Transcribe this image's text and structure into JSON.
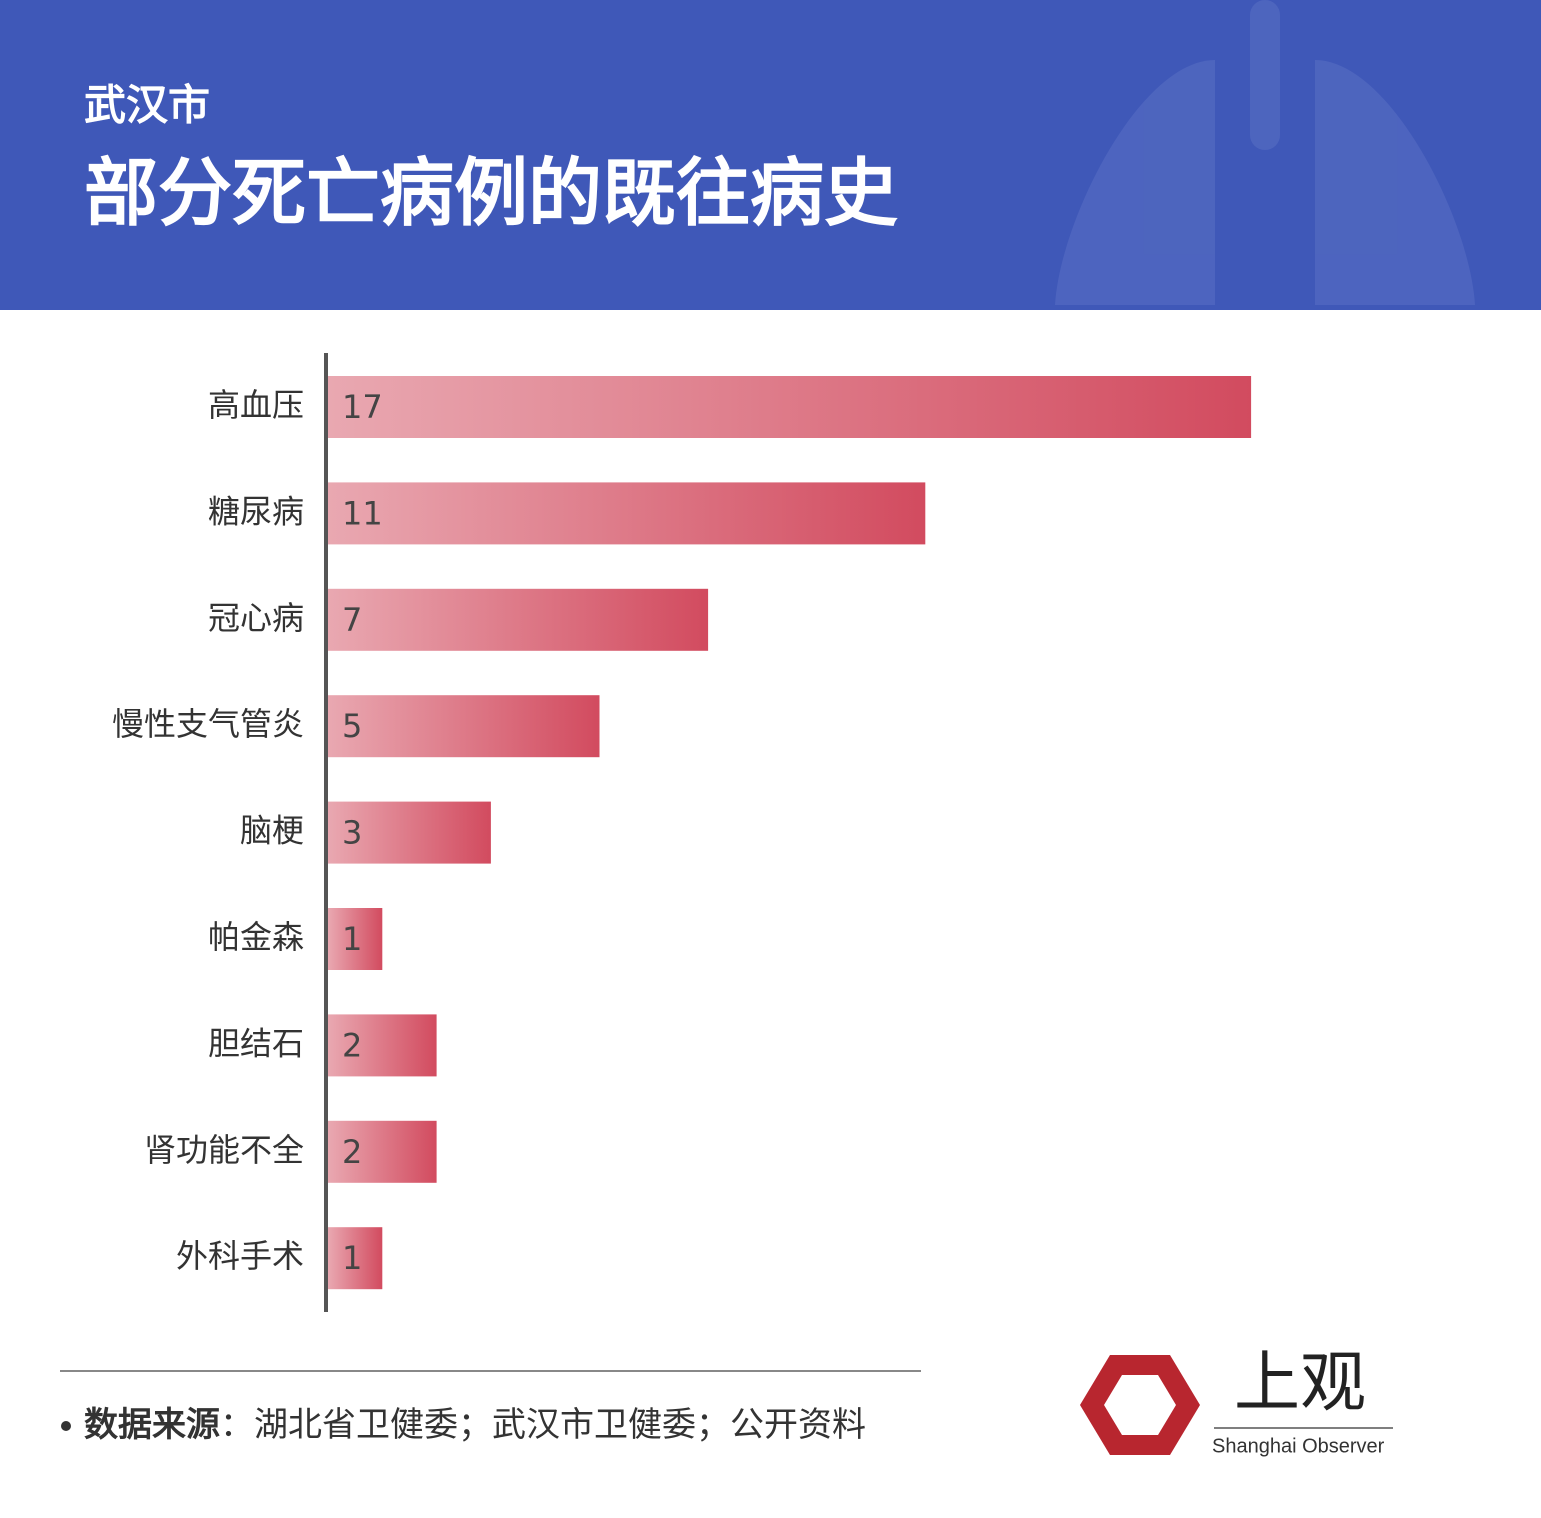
{
  "chart_data": {
    "type": "bar",
    "orientation": "horizontal",
    "supertitle": "武汉市",
    "title": "部分死亡病例的既往病史",
    "categories": [
      "高血压",
      "糖尿病",
      "冠心病",
      "慢性支气管炎",
      "脑梗",
      "帕金森",
      "胆结石",
      "肾功能不全",
      "外科手术"
    ],
    "values": [
      17,
      11,
      7,
      5,
      3,
      1,
      2,
      2,
      1
    ],
    "color_start": "#e9a8b1",
    "color_end": "#d24b5f",
    "source_label": "数据来源",
    "source_text": "：湖北省卫健委；武汉市卫健委；公开资料",
    "logo_title": "上观",
    "logo_subtitle": "Shanghai Observer"
  }
}
